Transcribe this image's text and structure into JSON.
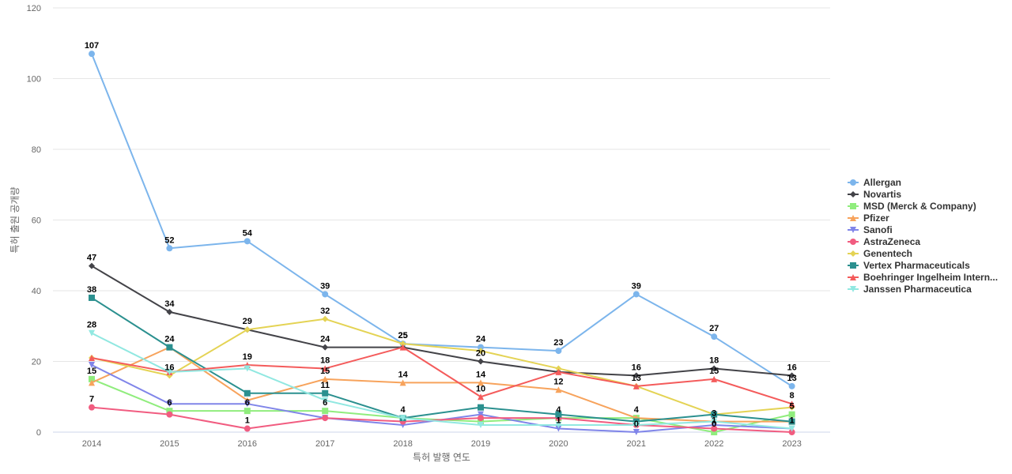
{
  "chart_data": {
    "type": "line",
    "title": "",
    "xlabel": "특허 발행 연도",
    "ylabel": "특허 출원 공개량",
    "x": [
      2014,
      2015,
      2016,
      2017,
      2018,
      2019,
      2020,
      2021,
      2022,
      2023
    ],
    "ylim": [
      0,
      120
    ],
    "yticks": [
      0,
      20,
      40,
      60,
      80,
      100,
      120
    ],
    "grid": true,
    "legend_position": "right",
    "series": [
      {
        "name": "Allergan",
        "color": "#7cb5ec",
        "marker": "circle",
        "values": [
          107,
          52,
          54,
          39,
          25,
          24,
          23,
          39,
          27,
          13
        ],
        "labels_shown": [
          true,
          true,
          true,
          true,
          true,
          true,
          true,
          true,
          true,
          true
        ]
      },
      {
        "name": "Novartis",
        "color": "#434348",
        "marker": "diamond",
        "values": [
          47,
          34,
          29,
          24,
          24,
          20,
          17,
          16,
          18,
          16
        ],
        "labels_shown": [
          true,
          true,
          false,
          true,
          false,
          true,
          false,
          true,
          true,
          true
        ]
      },
      {
        "name": "MSD (Merck & Company)",
        "color": "#90ed7d",
        "marker": "square",
        "values": [
          15,
          6,
          6,
          6,
          4,
          3,
          4,
          4,
          0,
          5
        ],
        "labels_shown": [
          true,
          true,
          true,
          true,
          true,
          false,
          true,
          true,
          true,
          true
        ]
      },
      {
        "name": "Pfizer",
        "color": "#f7a35c",
        "marker": "triangle",
        "values": [
          14,
          24,
          9,
          15,
          14,
          14,
          12,
          4,
          3,
          3
        ],
        "labels_shown": [
          false,
          false,
          false,
          true,
          true,
          true,
          true,
          false,
          true,
          false
        ]
      },
      {
        "name": "Sanofi",
        "color": "#8085e9",
        "marker": "triangle-down",
        "values": [
          19,
          8,
          8,
          4,
          2,
          5,
          1,
          0,
          2,
          1
        ],
        "labels_shown": [
          false,
          false,
          false,
          false,
          false,
          false,
          true,
          true,
          false,
          true
        ]
      },
      {
        "name": "AstraZeneca",
        "color": "#f15c80",
        "marker": "circle",
        "values": [
          7,
          5,
          1,
          4,
          3,
          4,
          4,
          2,
          1,
          0
        ],
        "labels_shown": [
          true,
          false,
          true,
          false,
          false,
          false,
          false,
          false,
          true,
          false
        ]
      },
      {
        "name": "Genentech",
        "color": "#e4d354",
        "marker": "diamond",
        "values": [
          21,
          16,
          29,
          32,
          25,
          23,
          18,
          13,
          5,
          7
        ],
        "labels_shown": [
          false,
          true,
          true,
          true,
          true,
          false,
          false,
          false,
          false,
          false
        ]
      },
      {
        "name": "Vertex Pharmaceuticals",
        "color": "#2b908f",
        "marker": "square",
        "values": [
          38,
          24,
          11,
          11,
          4,
          7,
          5,
          3,
          5,
          3
        ],
        "labels_shown": [
          true,
          true,
          false,
          true,
          false,
          false,
          false,
          false,
          false,
          false
        ]
      },
      {
        "name": "Boehringer Ingelheim Intern...",
        "color": "#f45b5b",
        "marker": "triangle",
        "values": [
          21,
          17,
          19,
          18,
          24,
          10,
          17,
          13,
          15,
          8
        ],
        "labels_shown": [
          false,
          false,
          true,
          true,
          false,
          true,
          false,
          true,
          true,
          true
        ]
      },
      {
        "name": "Janssen Pharmaceutica",
        "color": "#91e8e1",
        "marker": "triangle-down",
        "values": [
          28,
          17,
          18,
          9,
          4,
          2,
          2,
          2,
          3,
          1
        ],
        "labels_shown": [
          true,
          false,
          false,
          false,
          false,
          false,
          false,
          false,
          false,
          false
        ]
      }
    ]
  }
}
